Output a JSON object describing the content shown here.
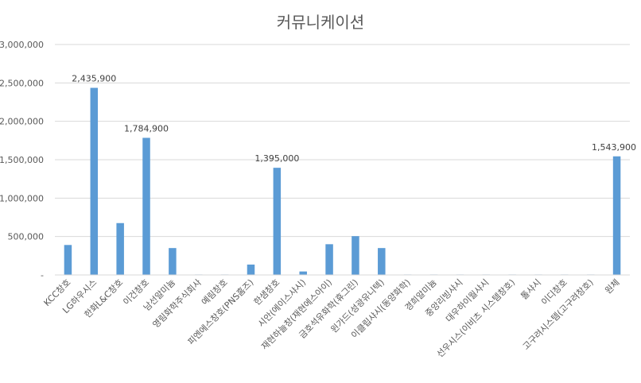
{
  "chart_data": {
    "type": "bar",
    "title": "커뮤니케이션",
    "xlabel": "",
    "ylabel": "",
    "ylim": [
      0,
      3000000
    ],
    "yticks": [
      0,
      500000,
      1000000,
      1500000,
      2000000,
      2500000,
      3000000
    ],
    "ytick_labels": [
      "-",
      "500,000",
      "1,000,000",
      "1,500,000",
      "2,000,000",
      "2,500,000",
      "3,000,000"
    ],
    "grid": true,
    "bar_color": "#5b9bd5",
    "categories": [
      "KCC창호",
      "LG하우시스",
      "한화L&C창호",
      "이건창호",
      "남선알미늄",
      "영림화학주식회사",
      "예림창호",
      "피엔에스창호(PNS홈즈)",
      "한샘창호",
      "시안(에이스샤시)",
      "재현하늘창(재현에스아이)",
      "금호석유화학(휴그린)",
      "윈가드(성광유니텍)",
      "이클립샤시(동양화학)",
      "경희알미늄",
      "중앙리빙샤시",
      "대우하이월샤시",
      "선우시스(이비츠 시스템창호)",
      "톨샤시",
      "이디창호",
      "고구려시스템(고구려창호)",
      "원체"
    ],
    "values": [
      390000,
      2435900,
      675000,
      1784900,
      350000,
      6000,
      6000,
      135000,
      1395000,
      45000,
      400000,
      505000,
      350000,
      6000,
      6000,
      6000,
      6000,
      6000,
      6000,
      6000,
      6000,
      1543900
    ],
    "data_labels": [
      {
        "index": 1,
        "text": "2,435,900"
      },
      {
        "index": 3,
        "text": "1,784,900"
      },
      {
        "index": 8,
        "text": "1,395,000"
      },
      {
        "index": 21,
        "text": "1,543,900"
      }
    ]
  }
}
